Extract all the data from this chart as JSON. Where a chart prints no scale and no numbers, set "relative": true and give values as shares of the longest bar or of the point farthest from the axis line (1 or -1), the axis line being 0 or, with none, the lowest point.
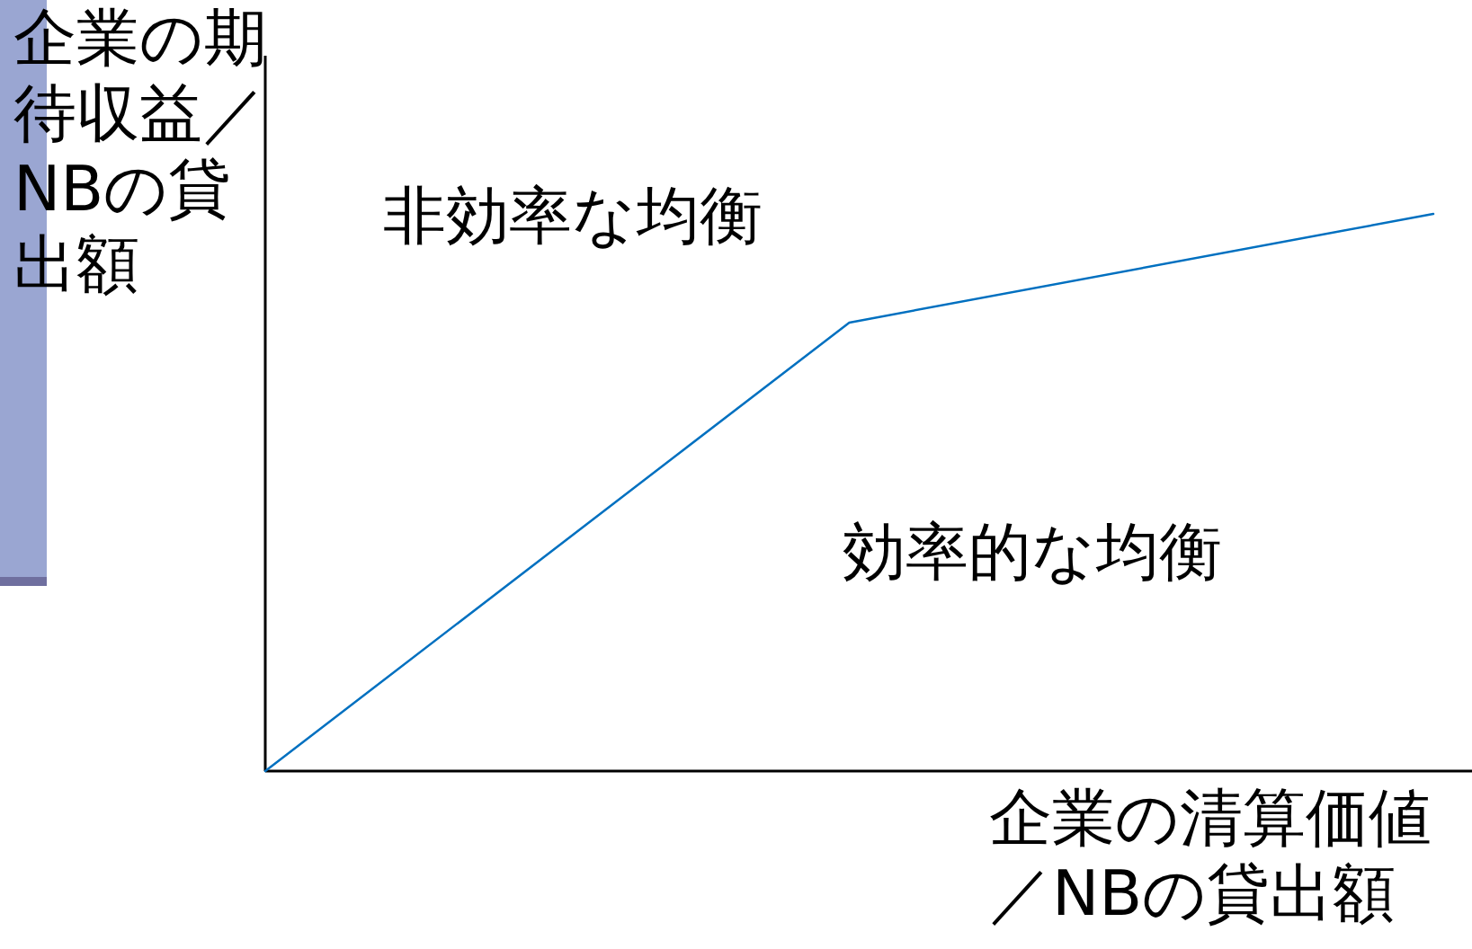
{
  "chart_data": {
    "type": "line",
    "relative": true,
    "xlabel": "企業の清算価値／NBの貸出額",
    "ylabel": "企業の期待収益／NBの貸出額",
    "categories": [
      null,
      null,
      null
    ],
    "series": [
      {
        "color": "#0070c0",
        "values": [
          0,
          0.805,
          1
        ]
      }
    ],
    "annotations": [
      "非効率な均衡",
      "効率的な均衡"
    ],
    "marker": "none",
    "line_style": "solid"
  }
}
